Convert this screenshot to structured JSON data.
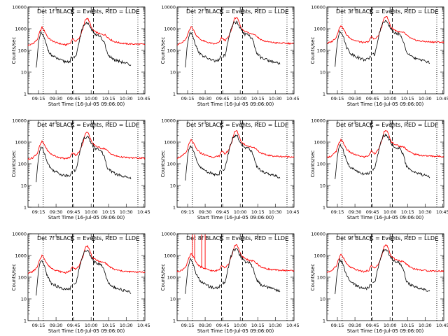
{
  "chart_data": {
    "type": "line",
    "layout": "3x3 grid",
    "common": {
      "title_suffix": "BLACK = Events, RED = LLD",
      "xlabel": "Start Time (16-Jul-05 09:06:00)",
      "ylabel": "Counts/sec",
      "x_ticks": [
        "09:15",
        "09:30",
        "09:45",
        "10:00",
        "10:15",
        "10:30",
        "10:45"
      ],
      "x_range_minutes_after_start": [
        0,
        100
      ],
      "x_tick_minutes_after_start": [
        9,
        24,
        39,
        54,
        69,
        84,
        99
      ],
      "y_scale": "log",
      "y_ticks": [
        "1",
        "10",
        "100",
        "1000",
        "10000"
      ],
      "ylim": [
        1,
        10000
      ],
      "markers": [
        {
          "label": "S",
          "minute": 38,
          "style": "dashed"
        },
        {
          "label": "E",
          "minute": 56,
          "style": "dashed"
        },
        {
          "label": "",
          "minute": 13,
          "style": "dotted"
        },
        {
          "label": "E",
          "minute": 94,
          "style": "dotted"
        }
      ],
      "series_colors": {
        "events": "#000000",
        "lld": "#ff0000"
      }
    },
    "panels": [
      {
        "title": "Det 1f",
        "scale": 1.0
      },
      {
        "title": "Det 2f",
        "scale": 1.1
      },
      {
        "title": "Det 3f",
        "scale": 1.25
      },
      {
        "title": "Det 4f",
        "scale": 0.95
      },
      {
        "title": "Det 5f",
        "scale": 1.1
      },
      {
        "title": "Det 6f",
        "scale": 1.15
      },
      {
        "title": "Det 7f",
        "scale": 0.9
      },
      {
        "title": "Det 8f",
        "scale": 1.05,
        "spikes": [
          13,
          15,
          21,
          24
        ]
      },
      {
        "title": "Det 9f",
        "scale": 1.0
      }
    ],
    "lld_profile": [
      [
        0,
        170
      ],
      [
        4,
        200
      ],
      [
        8,
        320
      ],
      [
        10,
        700
      ],
      [
        12,
        1150
      ],
      [
        14,
        800
      ],
      [
        17,
        400
      ],
      [
        20,
        290
      ],
      [
        24,
        230
      ],
      [
        28,
        200
      ],
      [
        32,
        180
      ],
      [
        36,
        210
      ],
      [
        38,
        350
      ],
      [
        41,
        260
      ],
      [
        44,
        380
      ],
      [
        47,
        1000
      ],
      [
        49,
        2600
      ],
      [
        51,
        3100
      ],
      [
        53,
        1800
      ],
      [
        55,
        900
      ],
      [
        58,
        700
      ],
      [
        62,
        560
      ],
      [
        66,
        520
      ],
      [
        70,
        330
      ],
      [
        74,
        250
      ],
      [
        80,
        215
      ],
      [
        86,
        200
      ],
      [
        92,
        195
      ],
      [
        100,
        190
      ]
    ],
    "events_profile": [
      [
        7,
        15
      ],
      [
        8,
        60
      ],
      [
        9,
        200
      ],
      [
        10,
        400
      ],
      [
        11,
        650
      ],
      [
        13,
        500
      ],
      [
        15,
        230
      ],
      [
        17,
        110
      ],
      [
        20,
        60
      ],
      [
        24,
        45
      ],
      [
        28,
        35
      ],
      [
        32,
        30
      ],
      [
        36,
        32
      ],
      [
        37,
        45
      ],
      [
        38,
        40
      ],
      [
        39,
        50
      ],
      [
        41,
        55
      ],
      [
        44,
        300
      ],
      [
        46,
        850
      ],
      [
        48,
        1650
      ],
      [
        51,
        1900
      ],
      [
        53,
        1200
      ],
      [
        56,
        650
      ],
      [
        58,
        500
      ],
      [
        62,
        460
      ],
      [
        65,
        250
      ],
      [
        68,
        70
      ],
      [
        72,
        42
      ],
      [
        76,
        35
      ],
      [
        80,
        30
      ],
      [
        84,
        25
      ],
      [
        88,
        22
      ]
    ]
  }
}
